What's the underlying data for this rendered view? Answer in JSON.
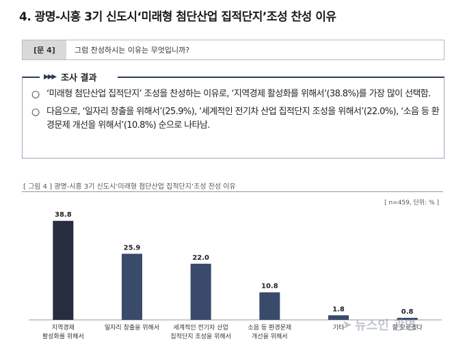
{
  "title": "4. 광명-시흥 3기 신도시‘미래형 첨단산업 집적단지’조성 찬성 이유",
  "question": {
    "number": "[문 4]",
    "text": "그럼 찬성하시는 이유는 무엇입니까?"
  },
  "result": {
    "label": "조사 결과",
    "arrows": "▶▶▶",
    "bullets": [
      {
        "mark": "○",
        "text": "‘미래형 첨단산업 집적단지’ 조성을 찬성하는 이유로, ‘지역경제 활성화를 위해서’(38.8%)를 가장 많이 선택함."
      },
      {
        "mark": "○",
        "text": "다음으로, ‘일자리 창출을 위해서’(25.9%), ‘세계적인 전기차 산업 집적단지 조성을 위해서’(22.0%), ‘소음 등 환경문제 개선을 위해서’(10.8%) 순으로 나타남."
      }
    ]
  },
  "figure": {
    "caption": "[ 그림 4 ] 광명-시흥 3기 신도시‘미래형 첨단산업 집적단지’조성 찬성 이유",
    "note": "[ n=459, 단위: % ]"
  },
  "chart_data": {
    "type": "bar",
    "categories": [
      [
        "지역경제",
        "활성화를 위해서"
      ],
      [
        "일자리 창출을 위해서"
      ],
      [
        "세계적인 전기차 산업",
        "집적단지 조성을 위해서"
      ],
      [
        "소음 등 환경문제",
        "개선을 위해서"
      ],
      [
        "기타"
      ],
      [
        "잘 모르겠다"
      ]
    ],
    "values": [
      38.8,
      25.9,
      22.0,
      10.8,
      1.8,
      0.8
    ],
    "labels": [
      "38.8",
      "25.9",
      "22.0",
      "10.8",
      "1.8",
      "0.8"
    ],
    "ylim": [
      0,
      45
    ],
    "colors": [
      "#262d3f",
      "#3a4a6b",
      "#3a4a6b",
      "#3a4a6b",
      "#3a4a6b",
      "#3a4a6b"
    ]
  },
  "watermark": {
    "text": "뉴스인 광명",
    "icon": "arrow-logo-icon"
  }
}
